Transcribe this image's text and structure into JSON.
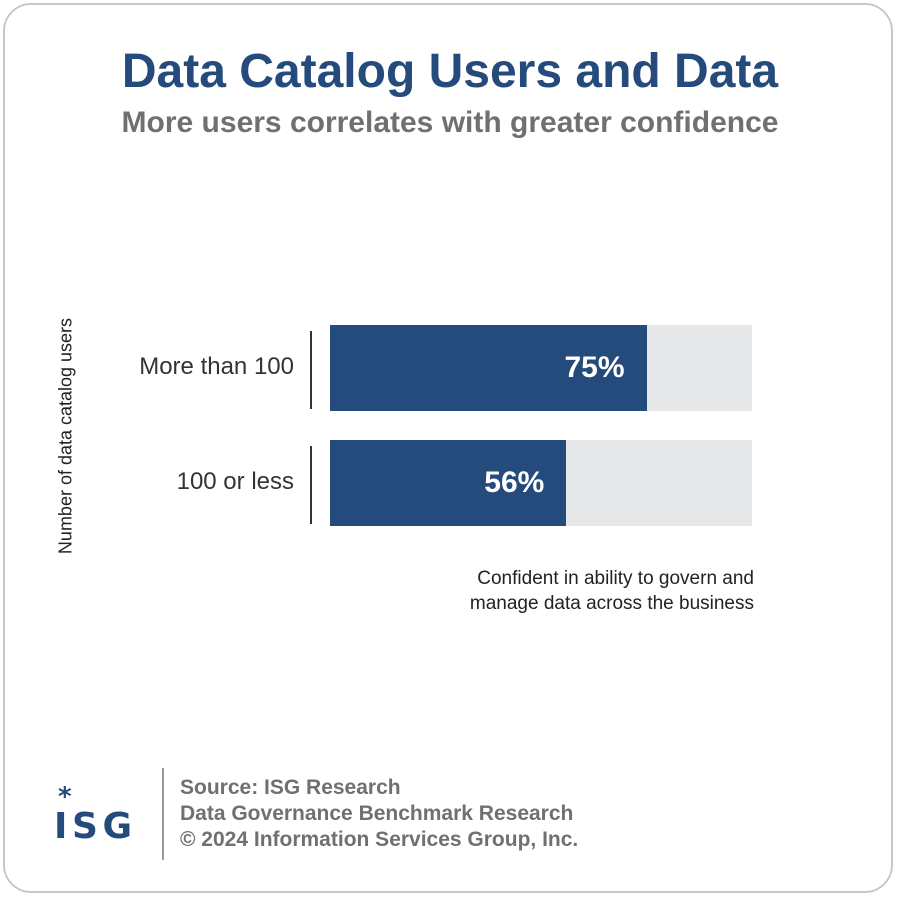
{
  "chart_data": {
    "type": "bar",
    "orientation": "horizontal",
    "title": "Data Catalog Users and Data",
    "subtitle": "More users correlates with greater confidence",
    "ylabel": "Number of data catalog users",
    "xlabel": "Confident in ability to govern and manage data across the business",
    "categories": [
      "More than 100",
      "100 or less"
    ],
    "values": [
      75,
      56
    ],
    "value_labels": [
      "75%",
      "56%"
    ],
    "xlim": [
      0,
      100
    ],
    "grid": false,
    "colors": {
      "bar": "#254a7c",
      "track": "#e6e7e8",
      "title": "#254a7c",
      "subtitle": "#6f7072"
    }
  },
  "footer": {
    "logo": "ISG",
    "source_lines": [
      "Source: ISG Research",
      "Data Governance Benchmark Research",
      "© 2024 Information Services Group, Inc."
    ]
  }
}
